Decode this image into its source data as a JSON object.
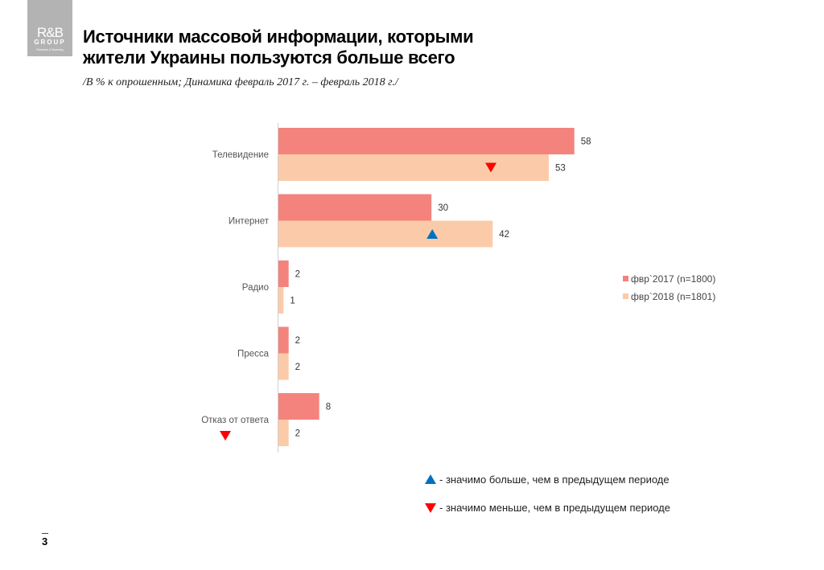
{
  "logo": {
    "line1": "R&B",
    "line2": "GROUP",
    "line3": "Research & Branding"
  },
  "header": {
    "title_line1": "Источники массовой информации, которыми",
    "title_line2": "жители Украины пользуются больше всего",
    "subtitle": "/В % к опрошенным; Динамика февраль 2017 г. – февраль 2018 г./"
  },
  "chart_data": {
    "type": "bar",
    "orientation": "horizontal",
    "categories": [
      "Телевидение",
      "Интернет",
      "Радио",
      "Пресса",
      "Отказ от ответа"
    ],
    "series": [
      {
        "name": "фвр`2017 (n=1800)",
        "color": "#f4837d",
        "values": [
          58,
          30,
          2,
          2,
          8
        ]
      },
      {
        "name": "фвр`2018 (n=1801)",
        "color": "#fbcba9",
        "values": [
          53,
          42,
          1,
          2,
          2
        ]
      }
    ],
    "xlim": [
      0,
      60
    ],
    "grid": false,
    "legend_position": "right",
    "markers": [
      {
        "category": "Телевидение",
        "series": "фвр`2018 (n=1801)",
        "type": "down"
      },
      {
        "category": "Интернет",
        "series": "фвр`2018 (n=1801)",
        "type": "up"
      },
      {
        "category": "Отказ от ответа",
        "series": "label",
        "type": "down"
      }
    ]
  },
  "notes": {
    "up": "- значимо больше, чем в предыдущем периоде",
    "down": "- значимо меньше, чем в предыдущем периоде",
    "up_color": "#0070c0",
    "down_color": "#ff0000"
  },
  "page": {
    "number": "3"
  }
}
